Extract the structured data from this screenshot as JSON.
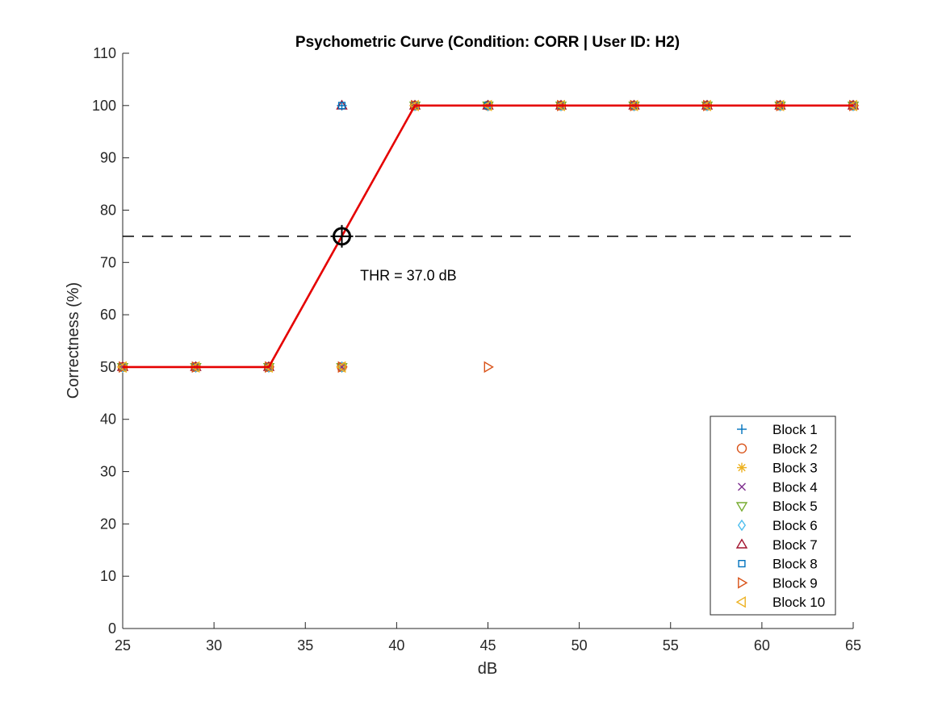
{
  "chart_data": {
    "type": "line",
    "title": "Psychometric Curve (Condition: CORR | User ID: H2)",
    "xlabel": "dB",
    "ylabel": "Correctness (%)",
    "xlim": [
      25,
      65
    ],
    "ylim": [
      0,
      110
    ],
    "xticks": [
      "25",
      "30",
      "35",
      "40",
      "45",
      "50",
      "55",
      "60",
      "65"
    ],
    "yticks": [
      "0",
      "10",
      "20",
      "30",
      "40",
      "50",
      "60",
      "70",
      "80",
      "90",
      "100",
      "110"
    ],
    "grid": false,
    "legend_position": "bottom-right",
    "fit_line": {
      "color": "#e50000",
      "x": [
        25,
        29,
        33,
        41,
        45,
        49,
        53,
        57,
        61,
        65
      ],
      "y": [
        50,
        50,
        50,
        100,
        100,
        100,
        100,
        100,
        100,
        100
      ]
    },
    "threshold_line": {
      "y": 75,
      "color": "#000000",
      "style": "dashed"
    },
    "threshold_point": {
      "x": 37,
      "y": 75
    },
    "annotation": {
      "text": "THR = 37.0 dB",
      "x": 38,
      "y": 67.5
    },
    "series": [
      {
        "name": "Block 1",
        "marker": "plus",
        "color": "#0072BD",
        "x": [
          25,
          29,
          33,
          37,
          41,
          45,
          49,
          53,
          57,
          61,
          65
        ],
        "y": [
          50,
          50,
          50,
          100,
          100,
          100,
          100,
          100,
          100,
          100,
          100
        ]
      },
      {
        "name": "Block 2",
        "marker": "circle",
        "color": "#D95319",
        "x": [
          25,
          29,
          33,
          37,
          41,
          45,
          49,
          53,
          57,
          61,
          65
        ],
        "y": [
          50,
          50,
          50,
          50,
          100,
          100,
          100,
          100,
          100,
          100,
          100
        ]
      },
      {
        "name": "Block 3",
        "marker": "asterisk",
        "color": "#EDB120",
        "x": [
          25,
          29,
          33,
          37,
          41,
          45,
          49,
          53,
          57,
          61,
          65
        ],
        "y": [
          50,
          50,
          50,
          50,
          100,
          100,
          100,
          100,
          100,
          100,
          100
        ]
      },
      {
        "name": "Block 4",
        "marker": "x",
        "color": "#7E2F8E",
        "x": [
          25,
          29,
          33,
          37,
          41,
          45,
          49,
          53,
          57,
          61,
          65
        ],
        "y": [
          50,
          50,
          50,
          50,
          100,
          100,
          100,
          100,
          100,
          100,
          100
        ]
      },
      {
        "name": "Block 5",
        "marker": "triangle-down",
        "color": "#77AC30",
        "x": [
          25,
          29,
          33,
          37,
          41,
          45,
          49,
          53,
          57,
          61,
          65
        ],
        "y": [
          50,
          50,
          50,
          50,
          100,
          100,
          100,
          100,
          100,
          100,
          100
        ]
      },
      {
        "name": "Block 6",
        "marker": "diamond",
        "color": "#4DBEEE",
        "x": [
          25,
          29,
          33,
          37,
          41,
          45,
          49,
          53,
          57,
          61,
          65
        ],
        "y": [
          50,
          50,
          50,
          50,
          100,
          100,
          100,
          100,
          100,
          100,
          100
        ]
      },
      {
        "name": "Block 7",
        "marker": "triangle-up",
        "color": "#A2142F",
        "x": [
          25,
          29,
          33,
          37,
          41,
          45,
          49,
          53,
          57,
          61,
          65
        ],
        "y": [
          50,
          50,
          50,
          100,
          100,
          100,
          100,
          100,
          100,
          100,
          100
        ]
      },
      {
        "name": "Block 8",
        "marker": "square",
        "color": "#0072BD",
        "x": [
          25,
          29,
          33,
          37,
          41,
          45,
          49,
          53,
          57,
          61,
          65
        ],
        "y": [
          50,
          50,
          50,
          100,
          100,
          100,
          100,
          100,
          100,
          100,
          100
        ]
      },
      {
        "name": "Block 9",
        "marker": "triangle-right",
        "color": "#D95319",
        "x": [
          25,
          29,
          33,
          37,
          41,
          45,
          49,
          53,
          57,
          61,
          65
        ],
        "y": [
          50,
          50,
          50,
          50,
          100,
          50,
          100,
          100,
          100,
          100,
          100
        ]
      },
      {
        "name": "Block 10",
        "marker": "triangle-left",
        "color": "#EDB120",
        "x": [
          25,
          29,
          33,
          37,
          41,
          45,
          49,
          53,
          57,
          61,
          65
        ],
        "y": [
          50,
          50,
          50,
          50,
          100,
          100,
          100,
          100,
          100,
          100,
          100
        ]
      }
    ]
  }
}
